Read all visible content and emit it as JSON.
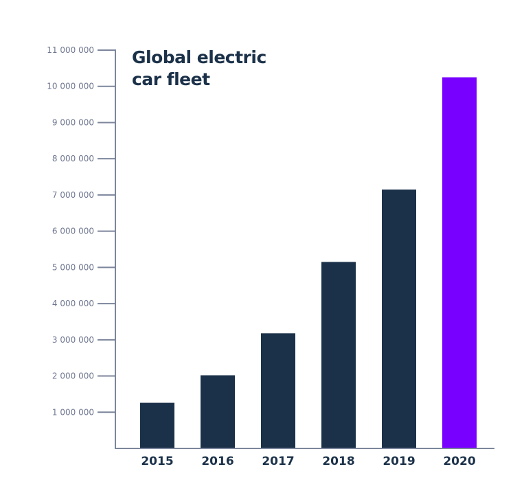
{
  "chart_data": {
    "type": "bar",
    "title": "Global electric car fleet",
    "xlabel": "",
    "ylabel": "",
    "categories": [
      "2015",
      "2016",
      "2017",
      "2018",
      "2019",
      "2020"
    ],
    "values": [
      1260000,
      2020000,
      3180000,
      5150000,
      7150000,
      10250000
    ],
    "ylim": [
      0,
      11000000
    ],
    "yticks": [
      1000000,
      2000000,
      3000000,
      4000000,
      5000000,
      6000000,
      7000000,
      8000000,
      9000000,
      10000000,
      11000000
    ],
    "ytick_labels": [
      "1 000 000",
      "2 000 000",
      "3 000 000",
      "4 000 000",
      "5 000 000",
      "6 000 000",
      "7 000 000",
      "8 000 000",
      "9 000 000",
      "10 000 000",
      "11 000 000"
    ],
    "grid": false,
    "colors": {
      "default": "#1b3149",
      "highlight": "#7700ff",
      "axis": "#7c859c"
    },
    "highlight_category": "2020"
  }
}
